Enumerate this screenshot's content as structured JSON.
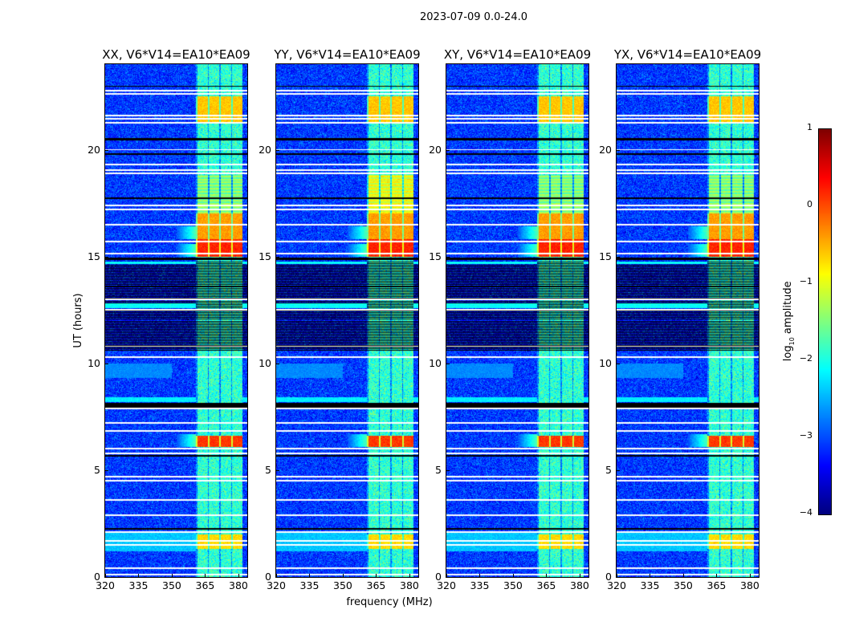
{
  "chart_data": {
    "type": "heatmap",
    "title": "2023-07-09 0.0-24.0",
    "xlabel": "frequency (MHz)",
    "ylabel": "UT (hours)",
    "xlim": [
      320,
      384
    ],
    "ylim": [
      0,
      24
    ],
    "xticks": [
      "320",
      "335",
      "350",
      "365",
      "380"
    ],
    "xtick_values": [
      320,
      335,
      350,
      365,
      380
    ],
    "yticks": [
      "0",
      "5",
      "10",
      "15",
      "20"
    ],
    "ytick_values": [
      0,
      5,
      10,
      15,
      20
    ],
    "panels": [
      {
        "title": "XX, V6*V14=EA10*EA09"
      },
      {
        "title": "YY, V6*V14=EA10*EA09"
      },
      {
        "title": "XY, V6*V14=EA10*EA09"
      },
      {
        "title": "YX, V6*V14=EA10*EA09"
      }
    ],
    "colorbar": {
      "label_prefix": "log",
      "label_sub": "10",
      "label_suffix": " amplitude",
      "colormap": "jet",
      "range": [
        -4,
        1
      ],
      "ticks": [
        "−4",
        "−3",
        "−2",
        "−1",
        "0",
        "1"
      ],
      "tick_values": [
        -4,
        -3,
        -2,
        -1,
        0,
        1
      ]
    },
    "background_level": -3.1,
    "band_MHz": [
      361,
      382
    ],
    "band_level": -1.9,
    "rfi_events_hours": [
      {
        "t": [
          21.3,
          22.5
        ],
        "level": -0.6
      },
      {
        "t": [
          15.0,
          15.8
        ],
        "level": 0.2
      },
      {
        "t": [
          15.8,
          17.0
        ],
        "level": -0.4
      },
      {
        "t": [
          17.0,
          18.8
        ],
        "level": -1.3
      },
      {
        "t": [
          6.1,
          6.6
        ],
        "level": 0.1
      },
      {
        "t": [
          1.3,
          2.0
        ],
        "level": -0.7
      }
    ],
    "flagged_hours": [
      22.75,
      22.6,
      21.6,
      21.45,
      21.25,
      20.0,
      19.3,
      19.05,
      18.9,
      17.4,
      17.2,
      16.5,
      15.7,
      15.15,
      13.0,
      12.5,
      10.8,
      10.3,
      7.9,
      7.2,
      6.85,
      6.0,
      5.8,
      4.7,
      4.5,
      3.6,
      2.9,
      2.1,
      1.7,
      1.5,
      0.4,
      0.1
    ],
    "dark_hours": [
      [
        20.45,
        20.55
      ],
      [
        19.75,
        19.82
      ],
      [
        17.68,
        17.75
      ],
      [
        14.85,
        14.95
      ],
      [
        7.85,
        8.15
      ],
      [
        5.65,
        5.72
      ],
      [
        2.2,
        2.28
      ],
      [
        22.95,
        23.0
      ]
    ],
    "low_signal_hours": [
      10.6,
      14.8
    ]
  }
}
